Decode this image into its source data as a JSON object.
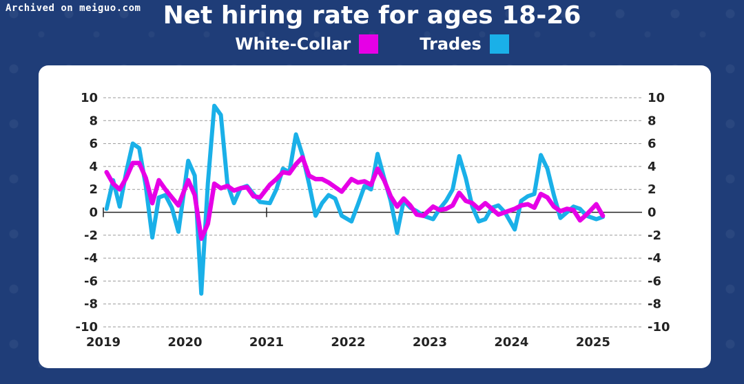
{
  "watermark": "Archived on meiguo.com",
  "title": "Net hiring rate for ages 18-26",
  "colors": {
    "background": "#1f3d78",
    "white_collar": "#e600e6",
    "trades": "#1ab0e8"
  },
  "chart_data": {
    "type": "line",
    "title": "Net hiring rate for ages 18-26",
    "xlabel": "",
    "ylabel": "",
    "ylim": [
      -10,
      10
    ],
    "yticks": [
      10,
      8,
      6,
      4,
      2,
      0,
      -2,
      -4,
      -6,
      -8,
      -10
    ],
    "xlim": [
      2019.0,
      2025.6
    ],
    "xticks": [
      "2019",
      "2020",
      "2021",
      "2022",
      "2023",
      "2024",
      "2025"
    ],
    "grid": "horizontal dashed",
    "legend": "top-center",
    "series": [
      {
        "name": "White-Collar",
        "color": "#e600e6",
        "x": [
          2019.04,
          2019.12,
          2019.2,
          2019.28,
          2019.36,
          2019.44,
          2019.52,
          2019.6,
          2019.68,
          2019.76,
          2019.84,
          2019.92,
          2020.04,
          2020.12,
          2020.2,
          2020.28,
          2020.36,
          2020.44,
          2020.52,
          2020.6,
          2020.68,
          2020.76,
          2020.84,
          2020.92,
          2021.04,
          2021.12,
          2021.2,
          2021.28,
          2021.36,
          2021.44,
          2021.52,
          2021.6,
          2021.68,
          2021.76,
          2021.84,
          2021.92,
          2022.04,
          2022.12,
          2022.2,
          2022.28,
          2022.36,
          2022.44,
          2022.52,
          2022.6,
          2022.68,
          2022.76,
          2022.84,
          2022.92,
          2023.04,
          2023.12,
          2023.2,
          2023.28,
          2023.36,
          2023.44,
          2023.52,
          2023.6,
          2023.68,
          2023.76,
          2023.84,
          2023.92,
          2024.04,
          2024.12,
          2024.2,
          2024.28,
          2024.36,
          2024.44,
          2024.52,
          2024.6,
          2024.68,
          2024.76,
          2024.84,
          2024.92,
          2025.04,
          2025.12
        ],
        "values": [
          3.5,
          2.5,
          2.0,
          3.0,
          4.3,
          4.3,
          3.0,
          0.8,
          2.8,
          2.0,
          1.3,
          0.6,
          2.8,
          1.5,
          -2.3,
          -1.0,
          2.5,
          2.1,
          2.3,
          1.9,
          2.1,
          2.2,
          1.4,
          1.3,
          2.4,
          2.9,
          3.5,
          3.4,
          4.2,
          4.8,
          3.2,
          2.9,
          2.9,
          2.6,
          2.2,
          1.8,
          2.9,
          2.6,
          2.7,
          2.4,
          3.8,
          2.8,
          1.4,
          0.5,
          1.2,
          0.6,
          -0.2,
          -0.3,
          0.5,
          0.2,
          0.3,
          0.6,
          1.7,
          1.0,
          0.8,
          0.3,
          0.8,
          0.3,
          -0.2,
          0.0,
          0.3,
          0.6,
          0.7,
          0.4,
          1.6,
          1.3,
          0.5,
          0.1,
          0.3,
          0.2,
          -0.7,
          -0.2,
          0.7,
          -0.3
        ]
      },
      {
        "name": "Trades",
        "color": "#1ab0e8",
        "x": [
          2019.04,
          2019.12,
          2019.2,
          2019.28,
          2019.36,
          2019.44,
          2019.52,
          2019.6,
          2019.68,
          2019.76,
          2019.84,
          2019.92,
          2020.04,
          2020.12,
          2020.2,
          2020.28,
          2020.36,
          2020.44,
          2020.52,
          2020.6,
          2020.68,
          2020.76,
          2020.84,
          2020.92,
          2021.04,
          2021.12,
          2021.2,
          2021.28,
          2021.36,
          2021.44,
          2021.52,
          2021.6,
          2021.68,
          2021.76,
          2021.84,
          2021.92,
          2022.04,
          2022.12,
          2022.2,
          2022.28,
          2022.36,
          2022.44,
          2022.52,
          2022.6,
          2022.68,
          2022.76,
          2022.84,
          2022.92,
          2023.04,
          2023.12,
          2023.2,
          2023.28,
          2023.36,
          2023.44,
          2023.52,
          2023.6,
          2023.68,
          2023.76,
          2023.84,
          2023.92,
          2024.04,
          2024.12,
          2024.2,
          2024.28,
          2024.36,
          2024.44,
          2024.52,
          2024.6,
          2024.68,
          2024.76,
          2024.84,
          2024.92,
          2025.04,
          2025.12
        ],
        "values": [
          0.3,
          2.8,
          0.5,
          3.5,
          6.0,
          5.6,
          2.3,
          -2.2,
          1.3,
          1.5,
          0.4,
          -1.7,
          4.5,
          3.2,
          -7.1,
          2.5,
          9.3,
          8.5,
          2.5,
          0.8,
          2.1,
          2.3,
          1.6,
          0.9,
          0.8,
          2.0,
          3.8,
          3.5,
          6.8,
          5.0,
          2.5,
          -0.3,
          0.8,
          1.5,
          1.2,
          -0.3,
          -0.8,
          0.7,
          2.3,
          2.0,
          5.1,
          3.0,
          1.0,
          -1.8,
          1.0,
          0.4,
          0.1,
          -0.3,
          -0.6,
          0.3,
          1.0,
          2.0,
          4.9,
          3.0,
          0.5,
          -0.8,
          -0.6,
          0.4,
          0.6,
          0.0,
          -1.5,
          1.0,
          1.4,
          1.6,
          5.0,
          3.8,
          1.5,
          -0.5,
          0.0,
          0.5,
          0.3,
          -0.3,
          -0.6,
          -0.4
        ]
      }
    ]
  }
}
